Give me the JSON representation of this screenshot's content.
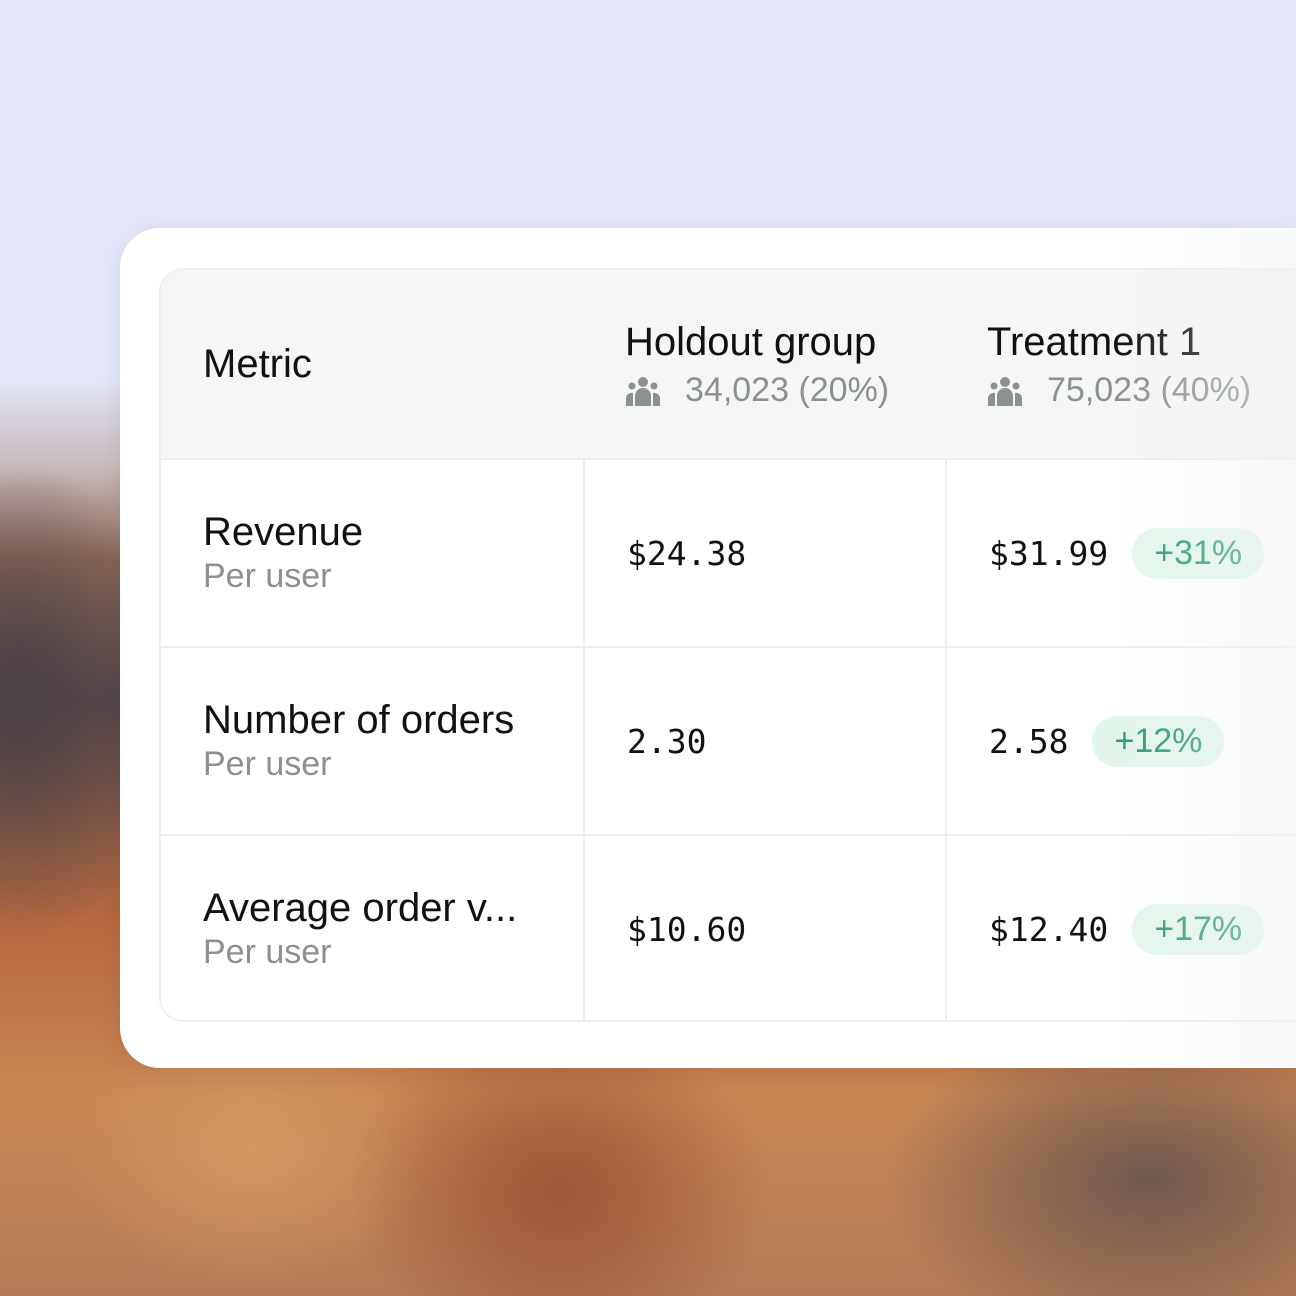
{
  "table": {
    "header": {
      "metric_label": "Metric",
      "groups": [
        {
          "title": "Holdout group",
          "count": "34,023 (20%)",
          "icon": "users-icon"
        },
        {
          "title": "Treatment 1",
          "count": "75,023 (40%)",
          "icon": "users-icon"
        }
      ]
    },
    "rows": [
      {
        "name": "Revenue",
        "sub": "Per user",
        "holdout": "$24.38",
        "treatment": "$31.99",
        "delta": "+31%"
      },
      {
        "name": "Number of orders",
        "sub": "Per user",
        "holdout": "2.30",
        "treatment": "2.58",
        "delta": "+12%"
      },
      {
        "name": "Average order v...",
        "sub": "Per user",
        "holdout": "$10.60",
        "treatment": "$12.40",
        "delta": "+17%"
      }
    ]
  },
  "colors": {
    "positive_badge_bg": "#e3f6ec",
    "positive_badge_text": "#2d9b6c",
    "header_bg": "#f5f7f6"
  }
}
